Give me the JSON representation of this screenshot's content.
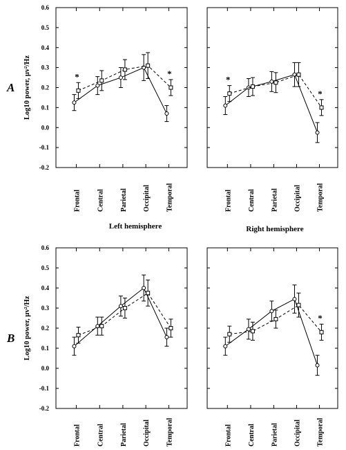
{
  "figure": {
    "row_labels": [
      "A",
      "B"
    ],
    "hemisphere_captions": [
      "Left hemisphere",
      "Right hemisphere"
    ]
  },
  "chart_data": [
    {
      "type": "line",
      "row": "A",
      "hemisphere": "Left hemisphere",
      "ylabel": "Log10 power, μv²/Hz",
      "ylim": [
        -0.2,
        0.6
      ],
      "yticks": [
        "0.6",
        "0.5",
        "0.4",
        "0.3",
        "0.2",
        "0.1",
        "0.0",
        "-0.1",
        "-0.2"
      ],
      "categories": [
        "Frontal",
        "Central",
        "Parietal",
        "Occipital",
        "Temporal"
      ],
      "series": [
        {
          "marker": "circle",
          "line": "solid",
          "values": [
            0.125,
            0.21,
            0.25,
            0.3,
            0.07
          ],
          "err": [
            0.04,
            0.045,
            0.05,
            0.065,
            0.04
          ]
        },
        {
          "marker": "square",
          "line": "dashed",
          "values": [
            0.185,
            0.235,
            0.29,
            0.31,
            0.2
          ],
          "err": [
            0.04,
            0.05,
            0.05,
            0.065,
            0.04
          ]
        }
      ],
      "significance": [
        {
          "category": "Frontal",
          "label": "*"
        },
        {
          "category": "Temporal",
          "label": "*"
        }
      ]
    },
    {
      "type": "line",
      "row": "A",
      "hemisphere": "Right hemisphere",
      "ylabel": "",
      "ylim": [
        -0.2,
        0.6
      ],
      "yticks": [],
      "categories": [
        "Frontal",
        "Central",
        "Parietal",
        "Occipital",
        "Temporal"
      ],
      "series": [
        {
          "marker": "circle",
          "line": "solid",
          "values": [
            0.11,
            0.2,
            0.23,
            0.265,
            -0.025
          ],
          "err": [
            0.045,
            0.045,
            0.05,
            0.06,
            0.05
          ]
        },
        {
          "marker": "square",
          "line": "dashed",
          "values": [
            0.17,
            0.205,
            0.225,
            0.265,
            0.1
          ],
          "err": [
            0.04,
            0.045,
            0.05,
            0.06,
            0.04
          ]
        }
      ],
      "significance": [
        {
          "category": "Frontal",
          "label": "*"
        },
        {
          "category": "Temporal",
          "label": "*"
        }
      ]
    },
    {
      "type": "line",
      "row": "B",
      "hemisphere": "Left hemisphere",
      "ylabel": "Log10 power, μv²/Hz",
      "ylim": [
        -0.2,
        0.6
      ],
      "yticks": [
        "0.6",
        "0.5",
        "0.4",
        "0.3",
        "0.2",
        "0.1",
        "0.0",
        "-0.1",
        "-0.2"
      ],
      "categories": [
        "Frontal",
        "Central",
        "Parietal",
        "Occipital",
        "Temporal"
      ],
      "series": [
        {
          "marker": "circle",
          "line": "solid",
          "values": [
            0.11,
            0.21,
            0.31,
            0.4,
            0.155
          ],
          "err": [
            0.045,
            0.045,
            0.05,
            0.065,
            0.045
          ]
        },
        {
          "marker": "square",
          "line": "dashed",
          "values": [
            0.165,
            0.21,
            0.3,
            0.375,
            0.2
          ],
          "err": [
            0.04,
            0.045,
            0.05,
            0.065,
            0.045
          ]
        }
      ],
      "significance": []
    },
    {
      "type": "line",
      "row": "B",
      "hemisphere": "Right hemisphere",
      "ylabel": "",
      "ylim": [
        -0.2,
        0.6
      ],
      "yticks": [],
      "categories": [
        "Frontal",
        "Central",
        "Parietal",
        "Occipital",
        "Temporal"
      ],
      "series": [
        {
          "marker": "circle",
          "line": "solid",
          "values": [
            0.11,
            0.195,
            0.285,
            0.345,
            0.015
          ],
          "err": [
            0.045,
            0.05,
            0.05,
            0.07,
            0.05
          ]
        },
        {
          "marker": "square",
          "line": "dashed",
          "values": [
            0.17,
            0.185,
            0.245,
            0.315,
            0.18
          ],
          "err": [
            0.04,
            0.045,
            0.045,
            0.06,
            0.04
          ]
        }
      ],
      "significance": [
        {
          "category": "Temporal",
          "label": "*"
        }
      ]
    }
  ]
}
